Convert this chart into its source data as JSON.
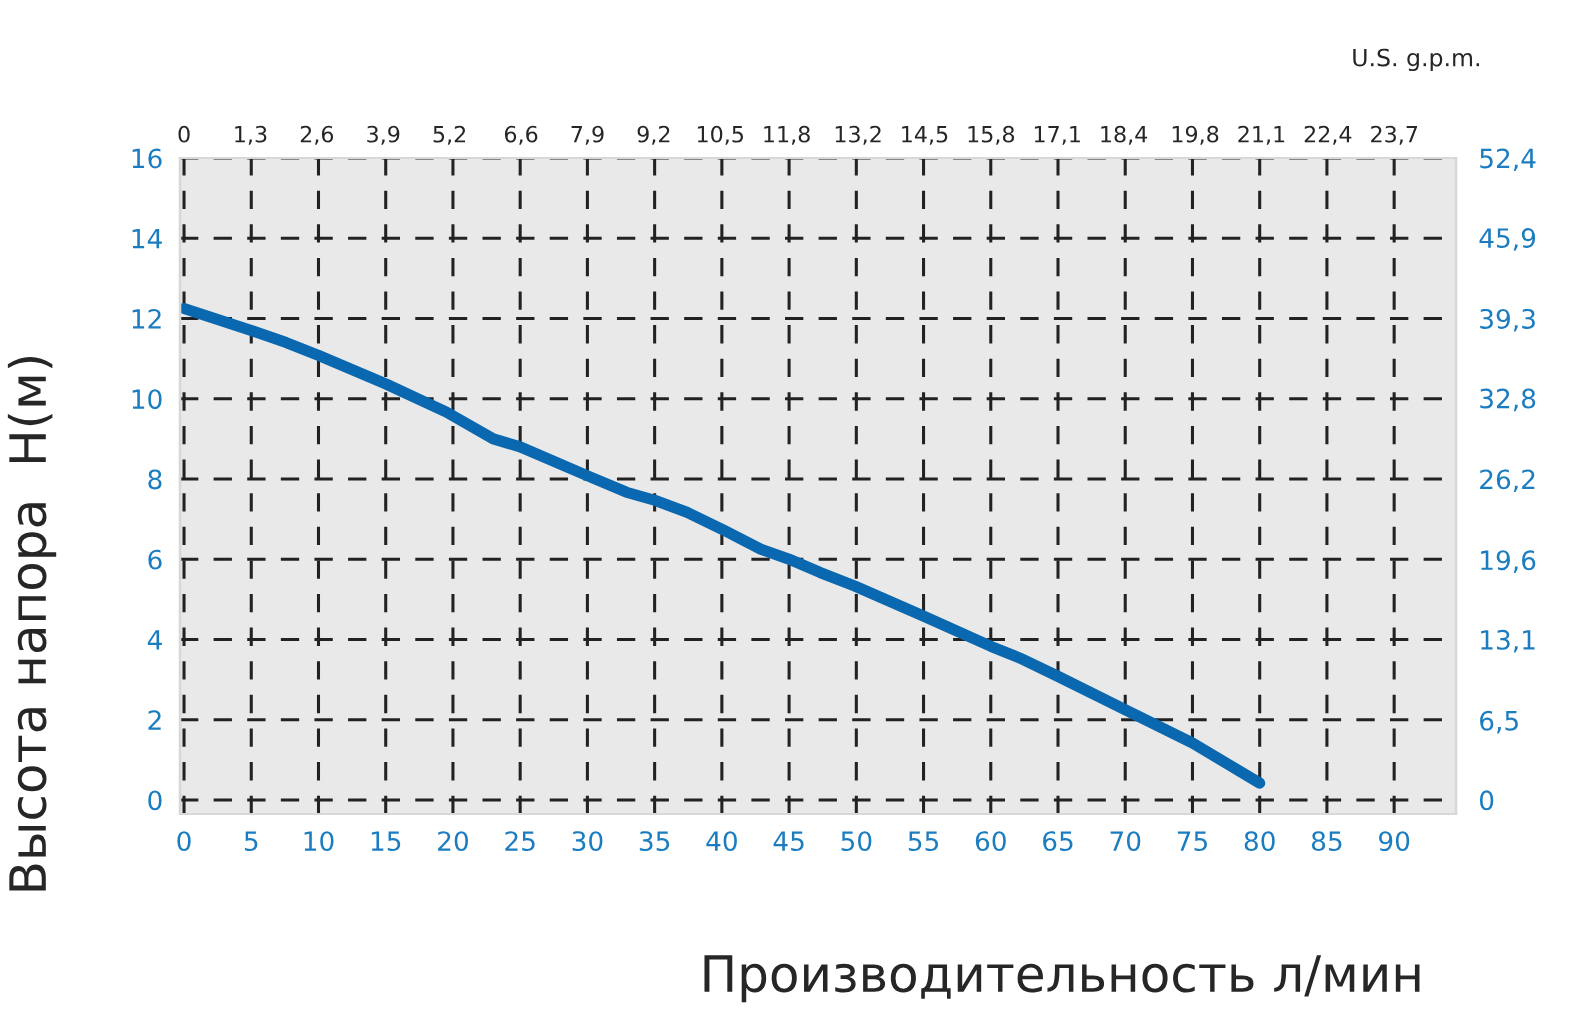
{
  "chart_data": {
    "type": "line",
    "xlabel": "Производительность л/мин",
    "ylabel": "Высота напора  H(м)",
    "x2label": "U.S. g.p.m.",
    "xlim": [
      -0.3,
      94.6
    ],
    "xticks": [
      0,
      5,
      10,
      15,
      20,
      25,
      30,
      35,
      40,
      45,
      50,
      55,
      60,
      65,
      70,
      75,
      80,
      85,
      90
    ],
    "ylim": [
      -0.35,
      16
    ],
    "yticks": [
      0,
      2,
      4,
      6,
      8,
      10,
      12,
      14,
      16
    ],
    "x2lim": [
      -0.08,
      24.91
    ],
    "x2ticks": [
      {
        "value": 0,
        "label": "0"
      },
      {
        "value": 1.3,
        "label": "1,3"
      },
      {
        "value": 2.6,
        "label": "2,6"
      },
      {
        "value": 3.9,
        "label": "3,9"
      },
      {
        "value": 5.2,
        "label": "5,2"
      },
      {
        "value": 6.6,
        "label": "6,6"
      },
      {
        "value": 7.9,
        "label": "7,9"
      },
      {
        "value": 9.2,
        "label": "9,2"
      },
      {
        "value": 10.5,
        "label": "10,5"
      },
      {
        "value": 11.8,
        "label": "11,8"
      },
      {
        "value": 13.2,
        "label": "13,2"
      },
      {
        "value": 14.5,
        "label": "14,5"
      },
      {
        "value": 15.8,
        "label": "15,8"
      },
      {
        "value": 17.1,
        "label": "17,1"
      },
      {
        "value": 18.4,
        "label": "18,4"
      },
      {
        "value": 19.8,
        "label": "19,8"
      },
      {
        "value": 21.1,
        "label": "21,1"
      },
      {
        "value": 22.4,
        "label": "22,4"
      },
      {
        "value": 23.7,
        "label": "23,7"
      }
    ],
    "y2lim": [
      -1.15,
      52.4
    ],
    "y2ticks": [
      {
        "value": 0,
        "label": "0"
      },
      {
        "value": 6.5,
        "label": "6,5"
      },
      {
        "value": 13.1,
        "label": "13,1"
      },
      {
        "value": 19.6,
        "label": "19,6"
      },
      {
        "value": 26.2,
        "label": "26,2"
      },
      {
        "value": 32.8,
        "label": "32,8"
      },
      {
        "value": 39.3,
        "label": "39,3"
      },
      {
        "value": 45.9,
        "label": "45,9"
      },
      {
        "value": 52.4,
        "label": "52,4"
      }
    ],
    "grid": true,
    "marker": "none",
    "line_style": "solid",
    "series": [
      {
        "color": "#0a68b0",
        "x": [
          0,
          5,
          7.6,
          10,
          15,
          19.5,
          23,
          25,
          30,
          32.9,
          35,
          37.4,
          40,
          42.9,
          45,
          47.3,
          49.9,
          55,
          60,
          62.2,
          65,
          70,
          75,
          80
        ],
        "values": [
          12.25,
          11.7,
          11.4,
          11.08,
          10.37,
          9.67,
          9.0,
          8.8,
          8.08,
          7.67,
          7.47,
          7.17,
          6.75,
          6.25,
          6.0,
          5.67,
          5.33,
          4.58,
          3.83,
          3.53,
          3.08,
          2.25,
          1.42,
          0.42
        ]
      }
    ]
  }
}
